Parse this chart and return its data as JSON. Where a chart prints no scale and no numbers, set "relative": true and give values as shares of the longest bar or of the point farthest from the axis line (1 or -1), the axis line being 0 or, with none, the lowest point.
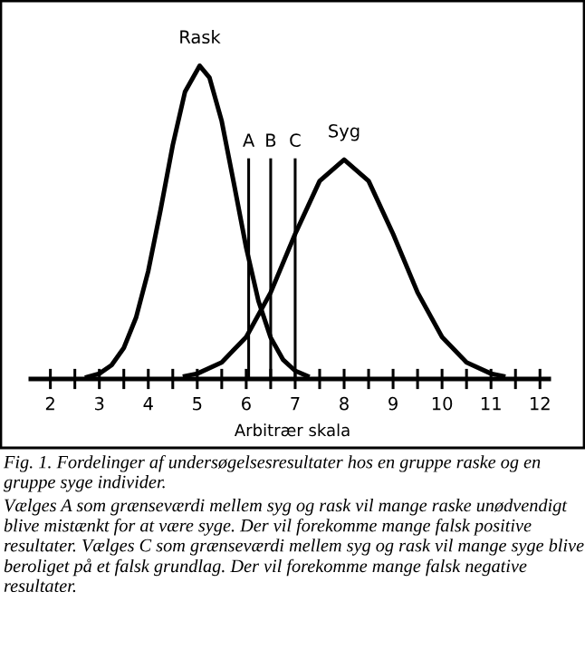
{
  "chart_data": {
    "type": "line",
    "relative": true,
    "xlabel": "Arbitrær skala",
    "xlim": [
      1.6,
      12.18
    ],
    "xticks": [
      2,
      {
        "value": 2.5,
        "label": null
      },
      3,
      {
        "value": 3.5,
        "label": null
      },
      4,
      {
        "value": 4.5,
        "label": null
      },
      5,
      {
        "value": 5.5,
        "label": null
      },
      6,
      {
        "value": 6.5,
        "label": null
      },
      7,
      {
        "value": 7.5,
        "label": null
      },
      8,
      {
        "value": 8.5,
        "label": null
      },
      9,
      {
        "value": 9.5,
        "label": null
      },
      10,
      {
        "value": 10.5,
        "label": null
      },
      11,
      {
        "value": 11.5,
        "label": null
      },
      12
    ],
    "series": [
      {
        "name": "Rask",
        "color": "#000000",
        "x": [
          2.75,
          3.0,
          3.25,
          3.5,
          3.75,
          4.0,
          4.25,
          4.5,
          4.75,
          5.05,
          5.25,
          5.5,
          5.75,
          6.0,
          6.25,
          6.5,
          6.75,
          7.0,
          7.25
        ],
        "values": [
          0.006,
          0.017,
          0.044,
          0.099,
          0.196,
          0.345,
          0.539,
          0.747,
          0.917,
          1,
          0.962,
          0.823,
          0.623,
          0.419,
          0.249,
          0.132,
          0.062,
          0.026,
          0.009
        ]
      },
      {
        "name": "Syg",
        "color": "#000000",
        "x": [
          4.75,
          5.0,
          5.5,
          6.0,
          6.5,
          7.0,
          7.5,
          8.0,
          8.5,
          9.0,
          9.5,
          10.0,
          10.5,
          11.0,
          11.25
        ],
        "values": [
          0.009,
          0.017,
          0.053,
          0.134,
          0.276,
          0.463,
          0.632,
          0.7,
          0.632,
          0.463,
          0.276,
          0.134,
          0.053,
          0.017,
          0.009
        ]
      }
    ],
    "ref_lines": [
      {
        "axis": "x",
        "value": 6.05,
        "label": "A",
        "color": "#000000"
      },
      {
        "axis": "x",
        "value": 6.5,
        "label": "B",
        "color": "#000000"
      },
      {
        "axis": "x",
        "value": 7.0,
        "label": "C",
        "color": "#000000"
      }
    ],
    "annotations": [
      "Fig. 1. Fordelinger af undersøgelsesresultater hos en gruppe raske og en gruppe syge individer.",
      "Vælges A som grænseværdi mellem syg og rask vil mange raske unødvendigt blive mistænkt for at være syge. Der vil forekomme mange falsk positive resultater. Vælges C som grænseværdi mellem syg og rask vil mange syge blive beroliget på et falsk grundlag. Der vil forekomme mange falsk negative resultater."
    ],
    "grid": false,
    "legend": false,
    "marker": "none",
    "line_style": "solid"
  }
}
